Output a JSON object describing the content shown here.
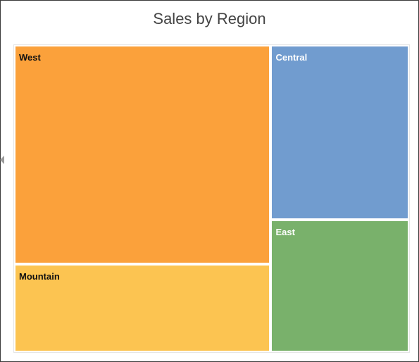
{
  "chart_data": {
    "type": "treemap",
    "title": "Sales by Region",
    "items": [
      {
        "name": "West",
        "value": 100,
        "color": "#fba13b",
        "label_color": "#111111"
      },
      {
        "name": "Mountain",
        "value": 39.5,
        "color": "#fcc451",
        "label_color": "#111111"
      },
      {
        "name": "Central",
        "value": 42.5,
        "color": "#719ccf",
        "label_color": "#ffffff"
      },
      {
        "name": "East",
        "value": 32,
        "color": "#79b16b",
        "label_color": "#ffffff"
      }
    ]
  }
}
